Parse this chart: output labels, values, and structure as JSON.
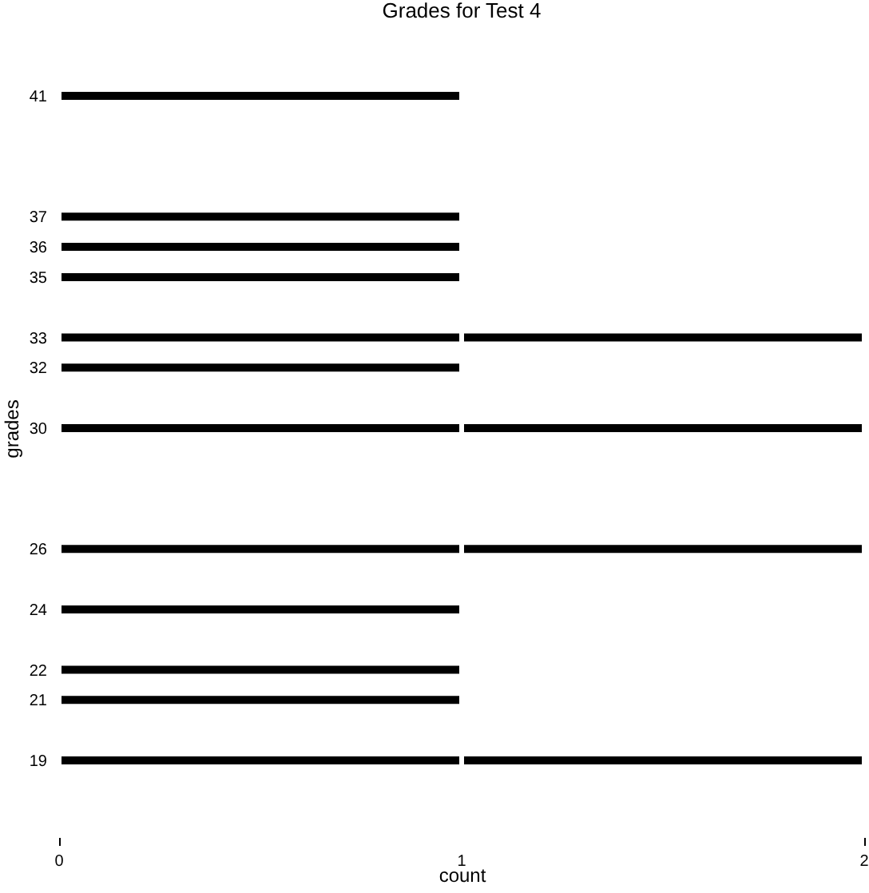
{
  "chart_data": {
    "type": "bar",
    "title": "Grades for Test 4",
    "xlabel": "count",
    "ylabel": "grades",
    "orientation": "horizontal",
    "stacked": true,
    "x": [
      41,
      37,
      36,
      35,
      33,
      32,
      30,
      26,
      24,
      22,
      21,
      19
    ],
    "series": [
      {
        "color": "#000000",
        "values": [
          1,
          1,
          1,
          1,
          1,
          1,
          1,
          1,
          1,
          1,
          1,
          1
        ]
      },
      {
        "color": "#000000",
        "values": [
          null,
          null,
          null,
          null,
          1,
          null,
          1,
          1,
          null,
          null,
          null,
          1
        ]
      }
    ],
    "xlim": [
      0,
      2
    ],
    "ylim": [
      19,
      41
    ],
    "xticks": [
      0,
      1,
      2
    ],
    "yticks": [
      19,
      21,
      22,
      24,
      26,
      30,
      32,
      33,
      35,
      36,
      37,
      41
    ],
    "grid": false,
    "legend": false
  }
}
